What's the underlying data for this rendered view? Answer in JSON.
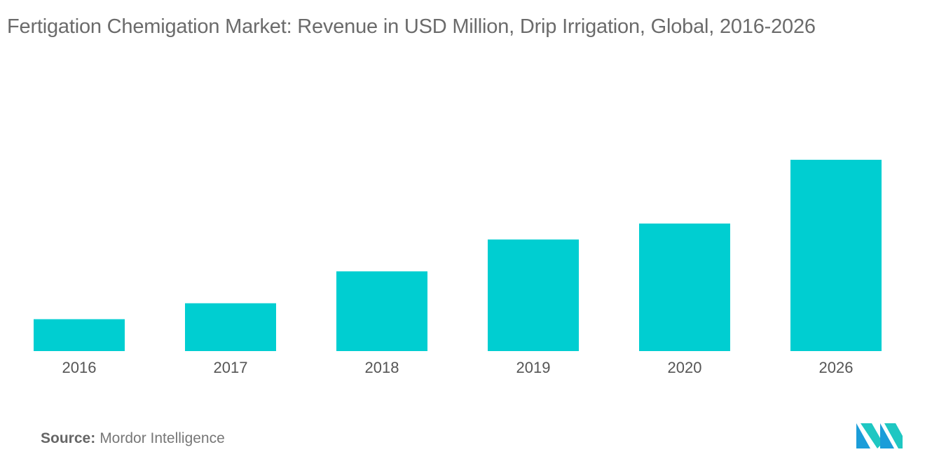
{
  "chart_data": {
    "type": "bar",
    "title": "Fertigation  Chemigation Market: Revenue in USD Million, Drip Irrigation, Global, 2016-2026",
    "categories": [
      "2016",
      "2017",
      "2018",
      "2019",
      "2020",
      "2026"
    ],
    "values": [
      20,
      30,
      50,
      70,
      80,
      120
    ],
    "xlabel": "",
    "ylabel": "",
    "ylim": [
      0,
      130
    ],
    "grid": false,
    "bar_color": "#00CED1"
  },
  "source": {
    "label": "Source:",
    "text": "Mordor Intelligence"
  },
  "logo": {
    "icon": "mordor-intelligence-logo",
    "colors": [
      "#1b9dd9",
      "#1fc7c2"
    ]
  }
}
